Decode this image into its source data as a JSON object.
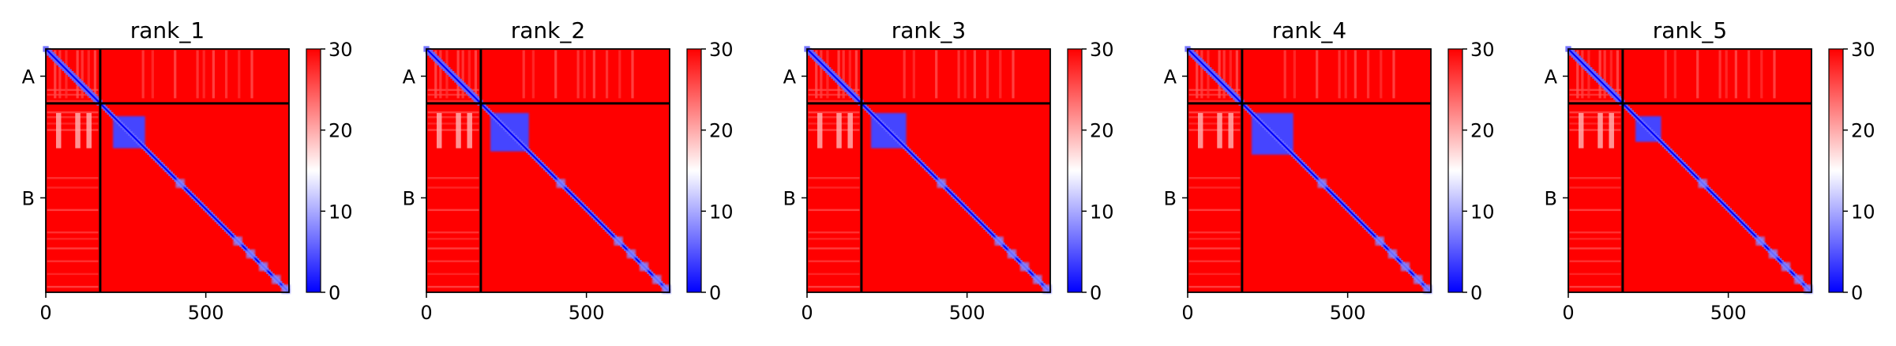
{
  "chart_data": {
    "type": "heatmap",
    "title": "",
    "chain_labels": [
      "A",
      "B"
    ],
    "chain_boundary": 170,
    "residues": 760,
    "x_ticks": [
      0,
      500
    ],
    "x_tick_labels": [
      "0",
      "500"
    ],
    "clim": [
      0,
      30
    ],
    "colorbar_ticks": [
      0,
      10,
      20,
      30
    ],
    "colorbar_tick_labels": [
      "0",
      "10",
      "20",
      "30"
    ],
    "colormap": {
      "low": "#0000ff",
      "mid": "#ffffff",
      "high": "#ff0000"
    },
    "boundary_line_color": "#000000",
    "panels": [
      {
        "title": "rank_1",
        "domain_block": [
          210,
          310
        ],
        "band_peak": [
          160,
          290
        ]
      },
      {
        "title": "rank_2",
        "domain_block": [
          200,
          320
        ],
        "band_peak": [
          150,
          290
        ]
      },
      {
        "title": "rank_3",
        "domain_block": [
          200,
          310
        ],
        "band_peak": [
          150,
          280
        ]
      },
      {
        "title": "rank_4",
        "domain_block": [
          200,
          330
        ],
        "band_peak": [
          150,
          290
        ]
      },
      {
        "title": "rank_5",
        "domain_block": [
          210,
          290
        ],
        "band_peak": [
          160,
          290
        ]
      }
    ],
    "diagonal_blobs": [
      420,
      600,
      640,
      680,
      720,
      750
    ]
  }
}
